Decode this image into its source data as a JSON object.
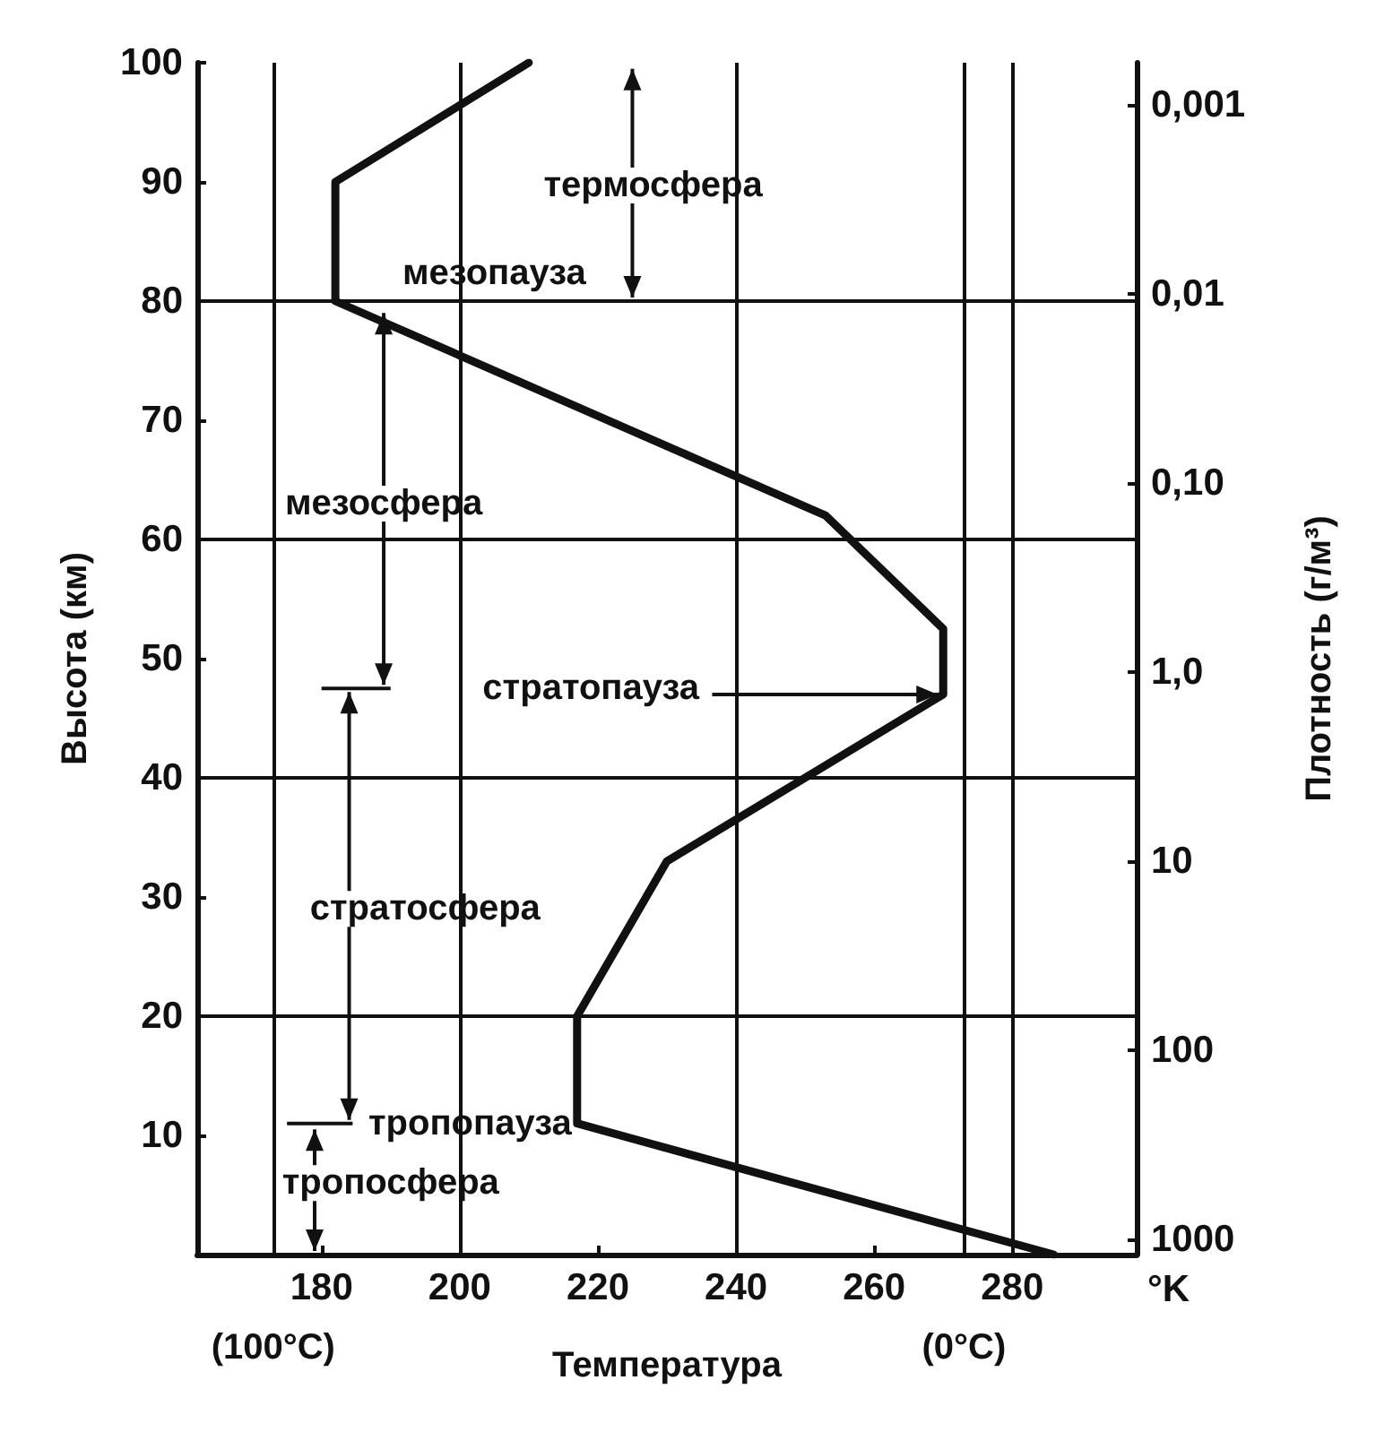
{
  "chart_data": {
    "type": "line",
    "xlabel": "Температура",
    "ylabel": "Высота (км)",
    "y2label": "Плотность (г/м³)",
    "x": [
      210,
      182,
      182,
      253,
      270,
      270,
      230,
      217,
      217,
      286,
      null
    ],
    "series": [
      {
        "color": "#111111",
        "values": [
          100,
          90,
          80,
          62,
          52.5,
          47,
          33,
          20,
          11,
          0,
          null
        ]
      }
    ],
    "xlim": [
      162,
      298
    ],
    "xticks": [
      180,
      200,
      220,
      240,
      260,
      280
    ],
    "ylim": [
      0,
      100
    ],
    "yticks": [
      10,
      20,
      30,
      40,
      50,
      60,
      70,
      80,
      90,
      100
    ],
    "y2lim": [
      1200,
      0.0006
    ],
    "y2ticks": [
      {
        "value": 0.001,
        "label": "0,001"
      },
      {
        "value": 0.01,
        "label": "0,01"
      },
      {
        "value": 0.1,
        "label": "0,10"
      },
      {
        "value": 1,
        "label": "1,0"
      },
      10,
      100,
      1000
    ],
    "log": "y2",
    "grid": false,
    "marker": "none",
    "line_style": "solid",
    "ref_lines": [
      {
        "axis": "x",
        "value": 173,
        "label": "(100°C)"
      },
      {
        "axis": "x",
        "value": 200
      },
      {
        "axis": "x",
        "value": 240
      },
      {
        "axis": "x",
        "value": 273,
        "label": "(0°C)"
      },
      {
        "axis": "x",
        "value": 280
      },
      {
        "axis": "y",
        "value": 20
      },
      {
        "axis": "y",
        "value": 40
      },
      {
        "axis": "y",
        "value": 60
      },
      {
        "axis": "y",
        "value": 80
      }
    ],
    "annotations": [
      "термосфера",
      "мезопауза",
      "мезосфера",
      {
        "text": "стратопауза",
        "x": 270,
        "y": 47
      },
      "стратосфера",
      "тропопауза",
      "тропосфера",
      "°K"
    ]
  }
}
